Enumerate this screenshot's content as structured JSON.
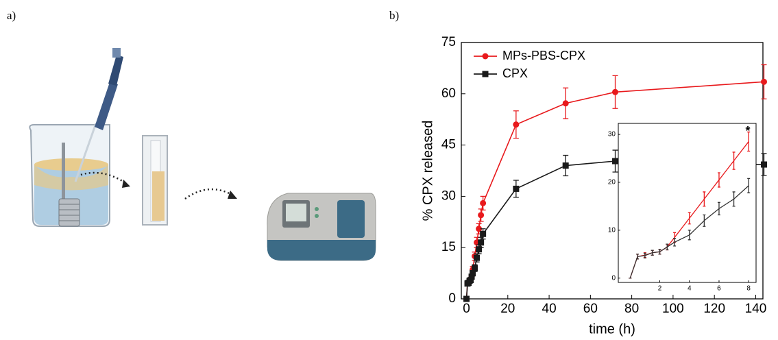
{
  "panel_labels": [
    "a)",
    "b)"
  ],
  "chart_data": [
    {
      "type": "line",
      "xlabel": "time (h)",
      "ylabel": "% CPX released",
      "xlim": [
        -2.5,
        143.5
      ],
      "ylim": [
        0,
        75
      ],
      "xticks": [
        0,
        20,
        40,
        60,
        80,
        100,
        120,
        140
      ],
      "yticks": [
        0,
        15,
        30,
        45,
        60,
        75
      ],
      "legend": "upper left",
      "series": [
        {
          "name": "MPs-PBS-CPX",
          "color": "#e8191c",
          "marker": "circle",
          "x": [
            0,
            0.5,
            1,
            1.5,
            2,
            2.5,
            3,
            4,
            5,
            6,
            7,
            8,
            24,
            48,
            72,
            144
          ],
          "values": [
            0,
            4.5,
            4.8,
            5.3,
            5.5,
            6.5,
            8.5,
            12.5,
            16.5,
            20.5,
            24.5,
            28,
            51,
            57.2,
            60.5,
            63.5
          ],
          "errors": [
            0,
            0.5,
            0.5,
            0.5,
            0.5,
            0.6,
            1,
            1.2,
            1.5,
            1.5,
            1.8,
            2,
            4,
            4.5,
            4.8,
            5
          ]
        },
        {
          "name": "CPX",
          "color": "#1a1a1a",
          "marker": "square",
          "x": [
            0,
            0.5,
            1,
            1.5,
            2,
            2.5,
            3,
            4,
            5,
            6,
            7,
            8,
            24,
            48,
            72,
            144
          ],
          "values": [
            0,
            4.5,
            4.7,
            5.3,
            5.5,
            6.5,
            7.5,
            9,
            12,
            14.5,
            16.5,
            19,
            32.2,
            39,
            40.3,
            39.3
          ],
          "errors": [
            0,
            0.5,
            0.5,
            0.5,
            0.5,
            0.6,
            0.8,
            1,
            1.2,
            1.3,
            1.5,
            1.5,
            2.5,
            3,
            3.2,
            3.2
          ]
        }
      ]
    },
    {
      "type": "line",
      "xlim": [
        -0.8,
        8.5
      ],
      "ylim": [
        -0.9,
        32.3
      ],
      "xticks": [
        2,
        4,
        6,
        8
      ],
      "yticks": [
        0,
        10,
        20,
        30
      ],
      "annotation": "*",
      "series": [
        {
          "color": "#e8191c",
          "x": [
            0,
            0.5,
            1,
            1.5,
            2,
            2.5,
            3,
            4,
            5,
            6,
            7,
            8
          ],
          "values": [
            0,
            4.5,
            4.8,
            5.3,
            5.5,
            6.5,
            8.5,
            12.5,
            16.5,
            20.5,
            24.5,
            28.5
          ],
          "errors": [
            0,
            0.5,
            0.5,
            0.5,
            0.5,
            0.6,
            1,
            1.2,
            1.5,
            1.5,
            1.8,
            2
          ]
        },
        {
          "color": "#333333",
          "x": [
            0,
            0.5,
            1,
            1.5,
            2,
            2.5,
            3,
            4,
            5,
            6,
            7,
            8
          ],
          "values": [
            0,
            4.5,
            4.7,
            5.3,
            5.5,
            6.5,
            7.5,
            9,
            12,
            14.5,
            16.5,
            19.3
          ],
          "errors": [
            0,
            0.5,
            0.5,
            0.5,
            0.5,
            0.6,
            0.8,
            1,
            1.2,
            1.3,
            1.5,
            1.5
          ]
        }
      ]
    }
  ]
}
